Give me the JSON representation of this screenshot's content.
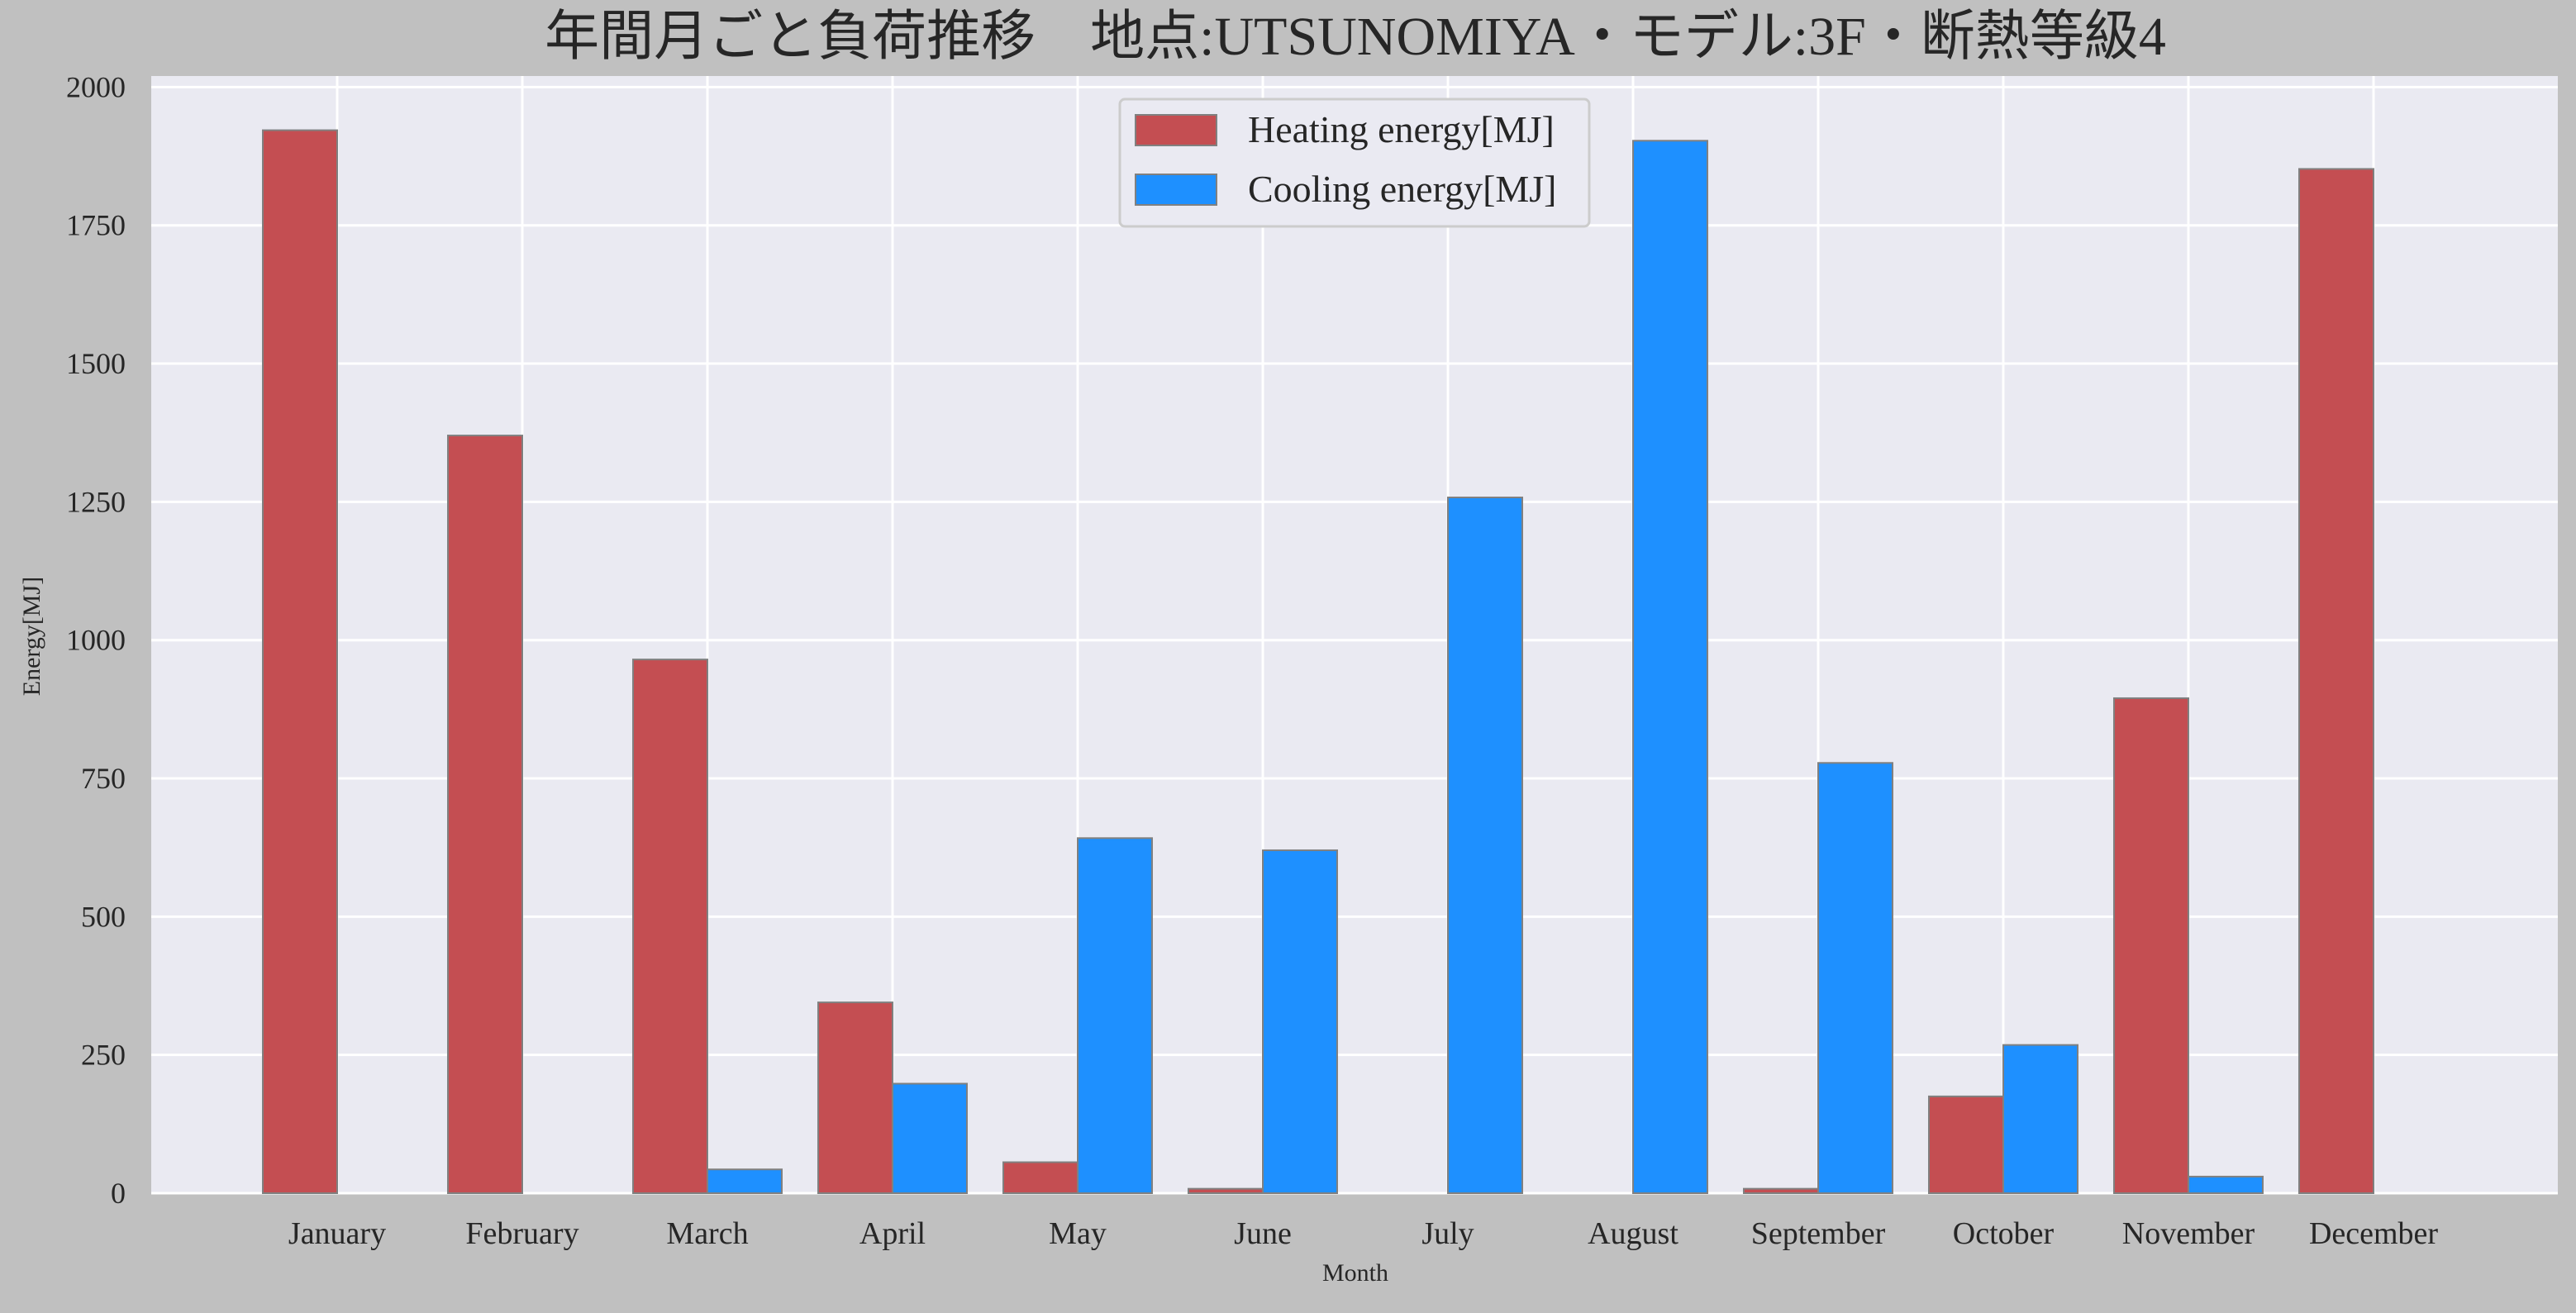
{
  "chart_data": {
    "type": "bar",
    "title": "年間月ごと負荷推移　地点:UTSUNOMIYA・モデル:3F・断熱等級4",
    "xlabel": "Month",
    "ylabel": "Energy[MJ]",
    "ylim": [
      0,
      2020
    ],
    "yticks": [
      "0",
      "250",
      "500",
      "750",
      "1000",
      "1250",
      "1500",
      "1750",
      "2000"
    ],
    "grid": true,
    "legend_position": "top-center",
    "categories": [
      "January",
      "February",
      "March",
      "April",
      "May",
      "June",
      "July",
      "August",
      "September",
      "October",
      "November",
      "December"
    ],
    "series": [
      {
        "name": "Heating energy[MJ]",
        "color": "#c44e52",
        "values": [
          1922,
          1370,
          965,
          345,
          56,
          8,
          0,
          0,
          8,
          175,
          895,
          1852
        ]
      },
      {
        "name": "Cooling energy[MJ]",
        "color": "#1e90ff",
        "values": [
          0,
          0,
          43,
          198,
          642,
          620,
          1258,
          1903,
          778,
          268,
          30,
          0
        ]
      }
    ]
  },
  "colors": {
    "figure_background": "#c0c0c0",
    "plot_background": "#eaeaf2",
    "grid": "#ffffff",
    "bar_edge": "#808080"
  }
}
